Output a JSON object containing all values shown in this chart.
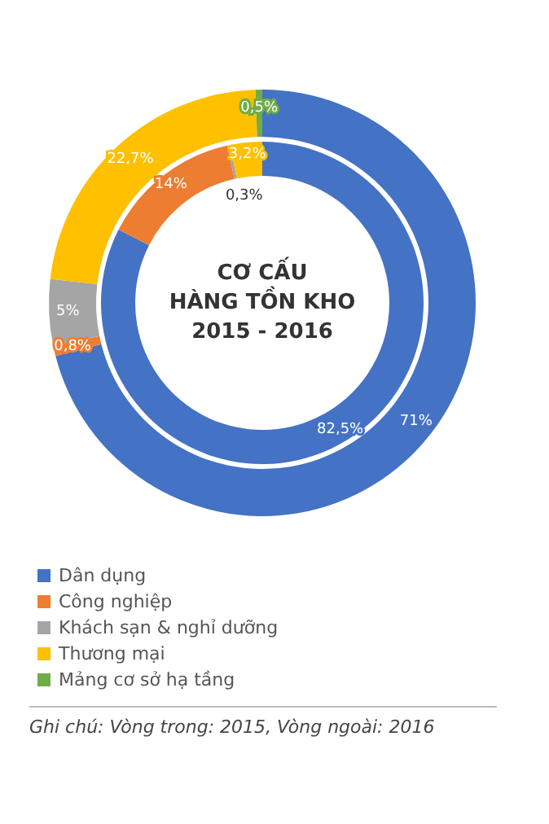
{
  "chart_data": {
    "type": "donut",
    "title": "CƠ CẤU\nHÀNG TỒN KHO\n2015 - 2016",
    "categories": [
      "Dân dụng",
      "Công nghiệp",
      "Khách sạn & nghỉ dưỡng",
      "Thương mại",
      "Mảng cơ sở hạ tầng"
    ],
    "colors": [
      "#4472c4",
      "#ed7d31",
      "#a5a5a5",
      "#ffc000",
      "#70ad47"
    ],
    "series": [
      {
        "values": [
          82.5,
          14,
          0.3,
          3.2,
          0
        ],
        "value_labels": [
          "82,5%",
          "14%",
          "0,3%",
          "3,2%",
          null
        ]
      },
      {
        "values": [
          71,
          0.8,
          5,
          22.7,
          0.5
        ],
        "value_labels": [
          "71%",
          "0,8%",
          "5%",
          "22,7%",
          "0,5%"
        ]
      }
    ],
    "legend": "bottom left",
    "annotations": [
      "Ghi chú: Vòng trong: 2015, Vòng ngoài: 2016"
    ]
  }
}
